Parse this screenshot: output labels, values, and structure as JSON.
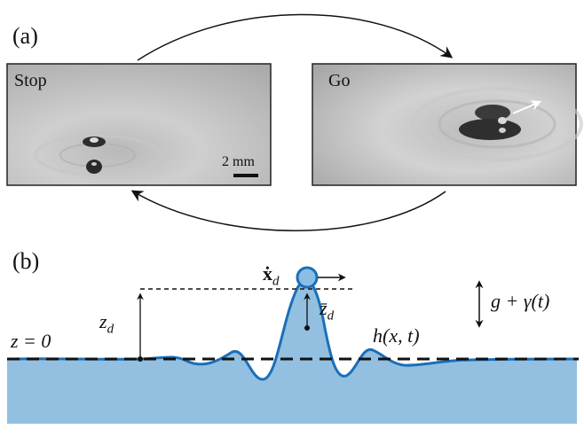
{
  "panel_a": {
    "label": "(a)",
    "left_photo": {
      "label": "Stop",
      "scale_bar": "2 mm"
    },
    "right_photo": {
      "label": "Go"
    }
  },
  "panel_b": {
    "label": "(b)",
    "z_level": "z = 0",
    "z_d": "z",
    "z_d_sub": "d",
    "zbar_d": "z̄",
    "zbar_d_sub": "d",
    "velocity": "ẋ",
    "velocity_sub": "d",
    "surface": "h(x, t)",
    "forcing": "g + γ(t)"
  },
  "colors": {
    "fluid_fill": "#93c0e0",
    "surface_line": "#1a6fb8",
    "drop_fill": "#8cbde4",
    "dashed_line": "#111111"
  }
}
